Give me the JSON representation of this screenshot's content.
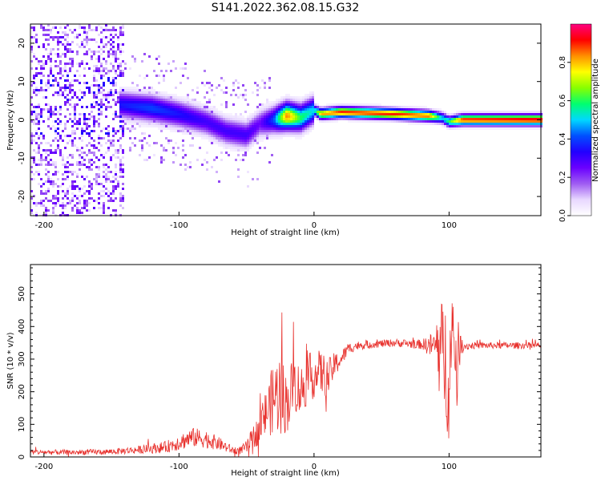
{
  "title": "S141.2022.362.08.15.G32",
  "chart_data": [
    {
      "type": "heatmap",
      "xlabel": "Height of straight line (km)",
      "ylabel": "Frequency (Hz)",
      "xlim": [
        -210,
        168
      ],
      "ylim": [
        -25,
        25
      ],
      "xticks": [
        -200,
        -100,
        0,
        100
      ],
      "yticks": [
        -20,
        -10,
        0,
        10,
        20
      ],
      "grid": false,
      "colorbar": {
        "label": "Normalized spectral amplitude",
        "range": [
          0,
          1
        ],
        "ticks": [
          0.0,
          0.2,
          0.4,
          0.6,
          0.8
        ],
        "colors": [
          "#ffffff",
          "#e8d8ff",
          "#9f5cf2",
          "#6a00ff",
          "#2200ff",
          "#0050ff",
          "#00d8ff",
          "#00ff70",
          "#88ff00",
          "#ffff00",
          "#ff9000",
          "#ff0000",
          "#ff0080"
        ]
      },
      "ridge": {
        "x": [
          -145,
          -120,
          -100,
          -80,
          -65,
          -50,
          -40,
          -30,
          -20,
          -10,
          0,
          5,
          20,
          60,
          85,
          95,
          100,
          110,
          168
        ],
        "frequency": [
          4,
          3,
          1.5,
          -0.5,
          -3,
          -4,
          -1,
          0,
          1,
          0.5,
          2.5,
          1.5,
          2,
          1.5,
          1,
          0.5,
          -0.5,
          0,
          0
        ],
        "amplitude": [
          0.35,
          0.4,
          0.35,
          0.3,
          0.3,
          0.3,
          0.25,
          0.4,
          0.85,
          0.6,
          0.5,
          0.8,
          0.9,
          0.9,
          0.85,
          0.5,
          0.6,
          0.9,
          0.95
        ]
      }
    },
    {
      "type": "line",
      "xlabel": "Height of straight line (km)",
      "ylabel": "SNR (10 * v/v)",
      "xlim": [
        -210,
        168
      ],
      "ylim": [
        0,
        590
      ],
      "xticks": [
        -200,
        -100,
        0,
        100
      ],
      "yticks": [
        0,
        100,
        200,
        300,
        400,
        500
      ],
      "grid": false,
      "series": [
        {
          "color": "#e8322e",
          "x": [
            -210,
            -180,
            -150,
            -130,
            -110,
            -100,
            -90,
            -80,
            -70,
            -60,
            -55,
            -50,
            -45,
            -40,
            -35,
            -30,
            -25,
            -20,
            -15,
            -10,
            -5,
            0,
            5,
            10,
            15,
            20,
            25,
            30,
            40,
            60,
            80,
            90,
            95,
            100,
            105,
            110,
            120,
            140,
            168
          ],
          "y": [
            15,
            14,
            16,
            22,
            30,
            45,
            60,
            55,
            40,
            20,
            20,
            30,
            60,
            90,
            140,
            180,
            200,
            160,
            230,
            200,
            240,
            250,
            260,
            240,
            280,
            300,
            330,
            340,
            345,
            350,
            345,
            340,
            330,
            260,
            330,
            340,
            342,
            342,
            342
          ],
          "noise": [
            8,
            8,
            9,
            12,
            18,
            25,
            30,
            28,
            20,
            12,
            12,
            20,
            35,
            50,
            80,
            110,
            130,
            90,
            90,
            80,
            80,
            70,
            70,
            60,
            40,
            25,
            20,
            15,
            12,
            12,
            15,
            50,
            160,
            220,
            120,
            15,
            10,
            10,
            10
          ]
        }
      ]
    }
  ]
}
